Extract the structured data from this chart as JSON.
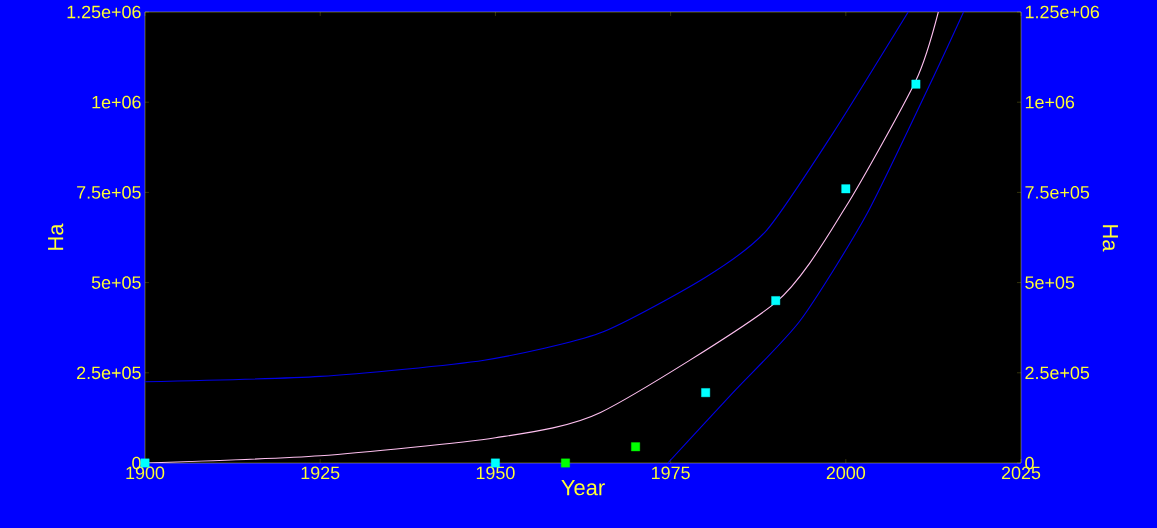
{
  "chart_data": {
    "type": "scatter",
    "xlabel": "Year",
    "ylabel": "Ha",
    "y2label": "Ha",
    "xlim": [
      1900,
      2025
    ],
    "xticks": [
      1900,
      1925,
      1950,
      1975,
      2000,
      2025
    ],
    "ylim": [
      0,
      1250000
    ],
    "yticks": [
      0,
      {
        "value": 250000,
        "label": "2.5e+05"
      },
      {
        "value": 500000,
        "label": "5e+05"
      },
      {
        "value": 750000,
        "label": "7.5e+05"
      },
      {
        "value": 1000000,
        "label": "1e+06"
      },
      {
        "value": 1250000,
        "label": "1.25e+06"
      }
    ],
    "y2lim": [
      0,
      1250000
    ],
    "y2ticks": [
      0,
      {
        "value": 250000,
        "label": "2.5e+05"
      },
      {
        "value": 500000,
        "label": "5e+05"
      },
      {
        "value": 750000,
        "label": "7.5e+05"
      },
      {
        "value": 1000000,
        "label": "1e+06"
      },
      {
        "value": 1250000,
        "label": "1.25e+06"
      }
    ],
    "grid": false,
    "series": [
      {
        "type": "line",
        "marker": "none",
        "color": "#0000e6",
        "x": [
          1900,
          1925,
          1948.4,
          1964.9,
          1980,
          1988.7,
          1998.2,
          2008.9
        ],
        "values": [
          225000,
          240000,
          285000,
          360000,
          515000,
          645000,
          915000,
          1250000
        ]
      },
      {
        "type": "line",
        "marker": "none",
        "color": "#0000e6",
        "x": [
          1974.6,
          1983.9,
          1993.5,
          2003,
          2012.5,
          2016.8
        ],
        "values": [
          0,
          195000,
          395000,
          690000,
          1070000,
          1250000
        ]
      },
      {
        "type": "line",
        "marker": "none",
        "color": "#ffc0f0",
        "x": [
          1900,
          1925,
          1950,
          1965,
          1990,
          2000,
          2010,
          2013.2
        ],
        "values": [
          0,
          20000,
          70000,
          140000,
          445000,
          710000,
          1060000,
          1250000
        ]
      },
      {
        "marker": "square",
        "color": "#00ffff",
        "x": [
          1900,
          1950,
          1980,
          1990,
          2000,
          2010
        ],
        "values": [
          0,
          0,
          195000,
          450000,
          760000,
          1050000
        ]
      },
      {
        "marker": "square",
        "color": "#00ff00",
        "x": [
          1960,
          1970
        ],
        "values": [
          0,
          45000
        ]
      }
    ]
  }
}
